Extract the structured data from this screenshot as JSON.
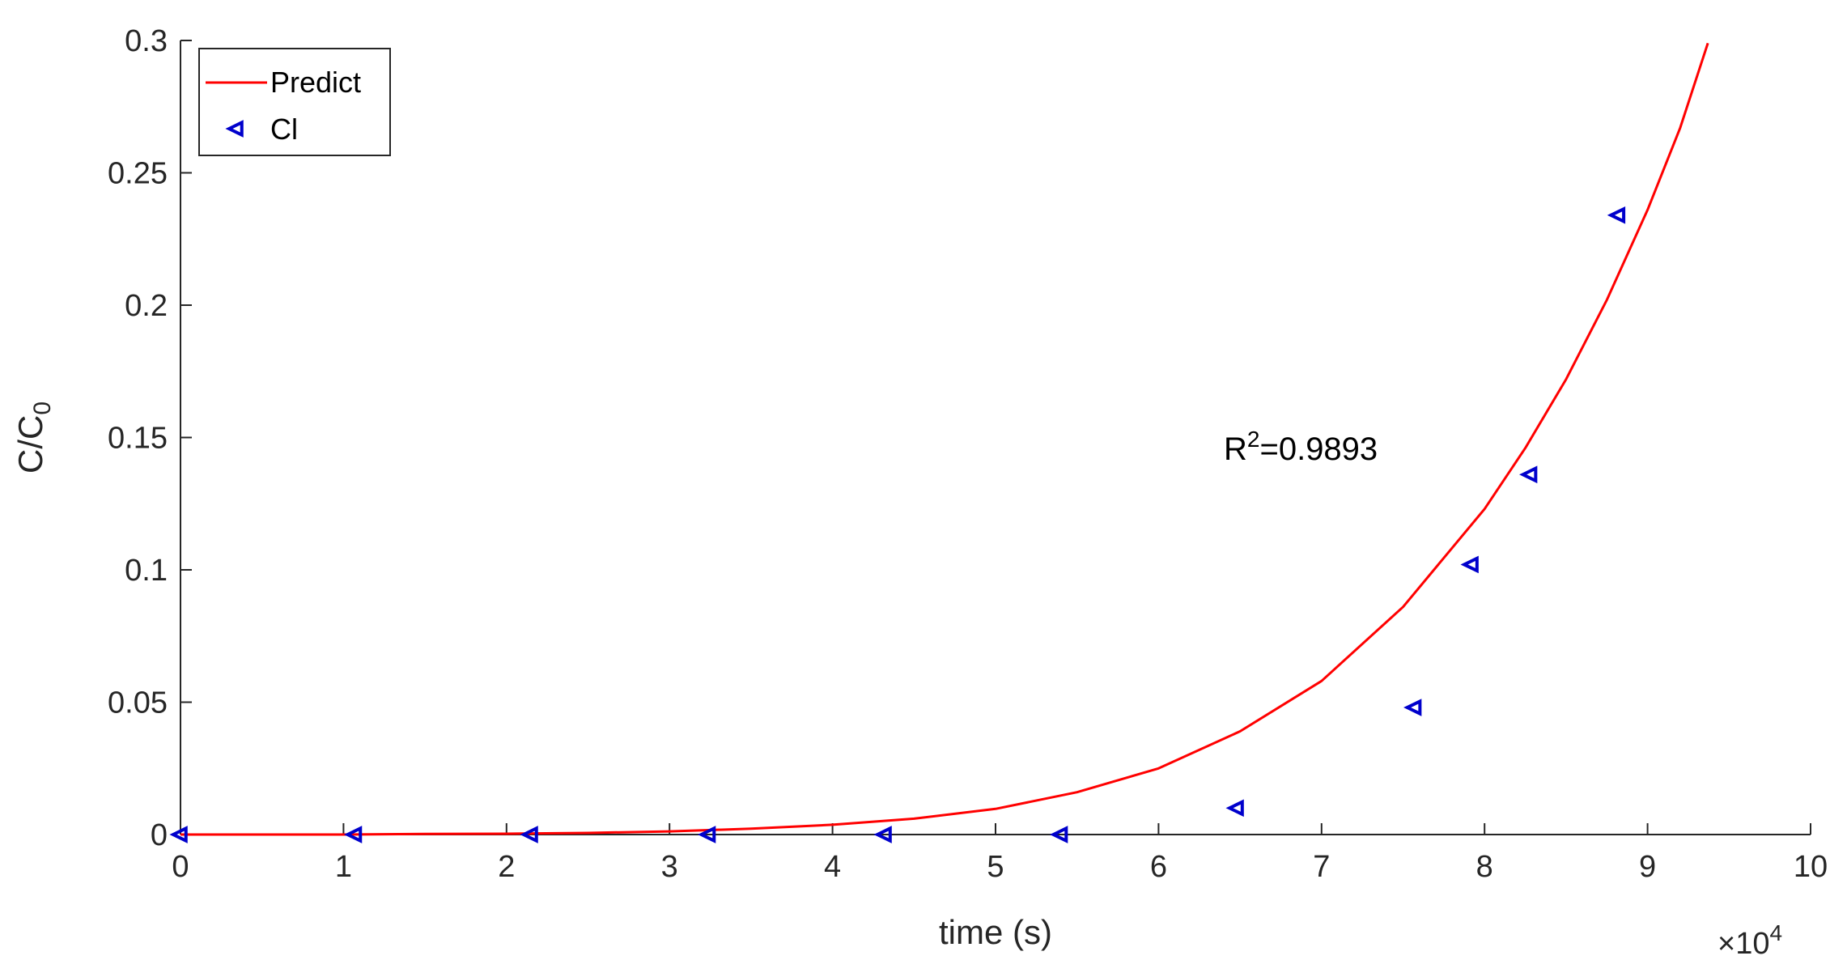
{
  "chart_data": {
    "type": "line",
    "xlabel": "time (s)",
    "ylabel_main": "C/C",
    "ylabel_sub": "0",
    "x_exponent_prefix": "×10",
    "x_exponent_power": "4",
    "xlim": [
      0,
      10
    ],
    "ylim": [
      0,
      0.3
    ],
    "x_ticks": [
      0,
      1,
      2,
      3,
      4,
      5,
      6,
      7,
      8,
      9,
      10
    ],
    "x_tick_labels": [
      "0",
      "1",
      "2",
      "3",
      "4",
      "5",
      "6",
      "7",
      "8",
      "9",
      "10"
    ],
    "y_ticks": [
      0,
      0.05,
      0.1,
      0.15,
      0.2,
      0.25,
      0.3
    ],
    "y_tick_labels": [
      "0",
      "0.05",
      "0.1",
      "0.15",
      "0.2",
      "0.25",
      "0.3"
    ],
    "legend_position": "top-left",
    "grid": false,
    "annotation_main": "R",
    "annotation_sup": "2",
    "annotation_rest": "=0.9893",
    "series": [
      {
        "name": "Predict",
        "kind": "line",
        "color": "#ff0000",
        "x": [
          0,
          0.5,
          1,
          1.5,
          2,
          2.5,
          3,
          3.5,
          4,
          4.5,
          5,
          5.5,
          6,
          6.5,
          7,
          7.5,
          8,
          8.25,
          8.5,
          8.75,
          9,
          9.2,
          9.37
        ],
        "values": [
          0,
          0,
          0,
          0.0002,
          0.0003,
          0.0006,
          0.0012,
          0.0022,
          0.0037,
          0.006,
          0.0097,
          0.016,
          0.025,
          0.039,
          0.058,
          0.086,
          0.123,
          0.146,
          0.172,
          0.202,
          0.236,
          0.267,
          0.299
        ]
      },
      {
        "name": "Cl",
        "kind": "scatter",
        "marker": "triangle-left",
        "color": "#0000cc",
        "x": [
          0,
          1.07,
          2.15,
          3.24,
          4.32,
          5.4,
          6.48,
          7.57,
          7.92,
          8.28,
          8.82
        ],
        "values": [
          0,
          0,
          0,
          0,
          0,
          0,
          0.01,
          0.048,
          0.102,
          0.136,
          0.234
        ]
      }
    ]
  }
}
